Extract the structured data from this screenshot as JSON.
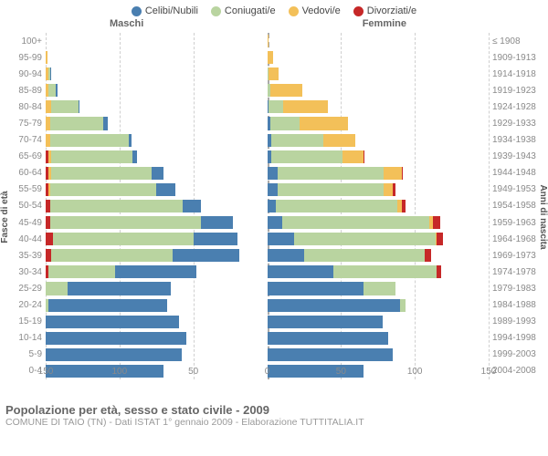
{
  "legend": [
    {
      "label": "Celibi/Nubili",
      "color": "#4a7fb0"
    },
    {
      "label": "Coniugati/e",
      "color": "#b9d4a0"
    },
    {
      "label": "Vedovi/e",
      "color": "#f3c059"
    },
    {
      "label": "Divorziati/e",
      "color": "#c62828"
    }
  ],
  "headers": {
    "male": "Maschi",
    "female": "Femmine"
  },
  "axis": {
    "left_title": "Fasce di età",
    "right_title": "Anni di nascita",
    "max": 150,
    "ticks": [
      150,
      100,
      50,
      0,
      50,
      100,
      150
    ],
    "grid_major": [
      150,
      100,
      50,
      0,
      50,
      100,
      150
    ],
    "grid_color": "#cfcfcf",
    "center_color": "#aaaaaa"
  },
  "plot": {
    "background": "#ffffff",
    "label_color": "#8a8a8a",
    "label_fontsize": 10
  },
  "rows": [
    {
      "age": "100+",
      "birth": "≤ 1908",
      "m": [
        0,
        0,
        0,
        0
      ],
      "f": [
        0,
        0,
        1,
        0
      ]
    },
    {
      "age": "95-99",
      "birth": "1909-1913",
      "m": [
        0,
        0,
        1,
        0
      ],
      "f": [
        0,
        0,
        4,
        0
      ]
    },
    {
      "age": "90-94",
      "birth": "1914-1918",
      "m": [
        1,
        1,
        2,
        0
      ],
      "f": [
        0,
        1,
        7,
        0
      ]
    },
    {
      "age": "85-89",
      "birth": "1919-1923",
      "m": [
        1,
        5,
        2,
        0
      ],
      "f": [
        0,
        2,
        22,
        0
      ]
    },
    {
      "age": "80-84",
      "birth": "1924-1928",
      "m": [
        1,
        18,
        4,
        0
      ],
      "f": [
        1,
        10,
        30,
        0
      ]
    },
    {
      "age": "75-79",
      "birth": "1929-1933",
      "m": [
        3,
        36,
        3,
        0
      ],
      "f": [
        2,
        20,
        33,
        0
      ]
    },
    {
      "age": "70-74",
      "birth": "1934-1938",
      "m": [
        2,
        53,
        3,
        0
      ],
      "f": [
        3,
        35,
        22,
        0
      ]
    },
    {
      "age": "65-69",
      "birth": "1939-1943",
      "m": [
        3,
        55,
        2,
        2
      ],
      "f": [
        3,
        48,
        14,
        1
      ]
    },
    {
      "age": "60-64",
      "birth": "1944-1948",
      "m": [
        8,
        68,
        2,
        2
      ],
      "f": [
        7,
        72,
        12,
        1
      ]
    },
    {
      "age": "55-59",
      "birth": "1949-1953",
      "m": [
        13,
        72,
        1,
        2
      ],
      "f": [
        7,
        72,
        6,
        2
      ]
    },
    {
      "age": "50-54",
      "birth": "1954-1958",
      "m": [
        12,
        90,
        0,
        3
      ],
      "f": [
        6,
        82,
        3,
        3
      ]
    },
    {
      "age": "45-49",
      "birth": "1959-1963",
      "m": [
        22,
        102,
        0,
        3
      ],
      "f": [
        10,
        100,
        2,
        5
      ]
    },
    {
      "age": "40-44",
      "birth": "1964-1968",
      "m": [
        30,
        95,
        0,
        5
      ],
      "f": [
        18,
        96,
        1,
        4
      ]
    },
    {
      "age": "35-39",
      "birth": "1969-1973",
      "m": [
        45,
        82,
        0,
        4
      ],
      "f": [
        25,
        82,
        0,
        4
      ]
    },
    {
      "age": "30-34",
      "birth": "1974-1978",
      "m": [
        55,
        45,
        0,
        2
      ],
      "f": [
        45,
        70,
        0,
        3
      ]
    },
    {
      "age": "25-29",
      "birth": "1979-1983",
      "m": [
        70,
        15,
        0,
        0
      ],
      "f": [
        65,
        22,
        0,
        0
      ]
    },
    {
      "age": "20-24",
      "birth": "1984-1988",
      "m": [
        80,
        2,
        0,
        0
      ],
      "f": [
        90,
        4,
        0,
        0
      ]
    },
    {
      "age": "15-19",
      "birth": "1989-1993",
      "m": [
        90,
        0,
        0,
        0
      ],
      "f": [
        78,
        0,
        0,
        0
      ]
    },
    {
      "age": "10-14",
      "birth": "1994-1998",
      "m": [
        95,
        0,
        0,
        0
      ],
      "f": [
        82,
        0,
        0,
        0
      ]
    },
    {
      "age": "5-9",
      "birth": "1999-2003",
      "m": [
        92,
        0,
        0,
        0
      ],
      "f": [
        85,
        0,
        0,
        0
      ]
    },
    {
      "age": "0-4",
      "birth": "2004-2008",
      "m": [
        80,
        0,
        0,
        0
      ],
      "f": [
        65,
        0,
        0,
        0
      ]
    }
  ],
  "footer": {
    "title": "Popolazione per età, sesso e stato civile - 2009",
    "subtitle": "COMUNE DI TAIO (TN) - Dati ISTAT 1° gennaio 2009 - Elaborazione TUTTITALIA.IT"
  }
}
